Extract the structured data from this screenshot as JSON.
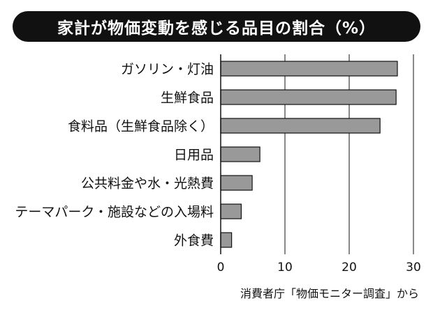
{
  "title": "家計が物価変動を感じる品目の割合（%）",
  "source": "消費者庁「物価モニター調査」から",
  "colors": {
    "bar": "#999999",
    "bar_stroke": "#111111",
    "title_bg": "#111111",
    "title_text": "#ffffff"
  },
  "chart_data": {
    "type": "bar",
    "orientation": "horizontal",
    "title": "家計が物価変動を感じる品目の割合（%）",
    "categories": [
      "ガソリン・灯油",
      "生鮮食品",
      "食料品（生鮮食品除く）",
      "日用品",
      "公共料金や水・光熱費",
      "テーマパーク・施設などの入場料",
      "外食費"
    ],
    "values": [
      27.5,
      27.3,
      24.8,
      6.1,
      4.9,
      3.2,
      1.7
    ],
    "xlim": [
      0,
      30
    ],
    "xticks": [
      0,
      10,
      20,
      30
    ],
    "grid": true
  }
}
